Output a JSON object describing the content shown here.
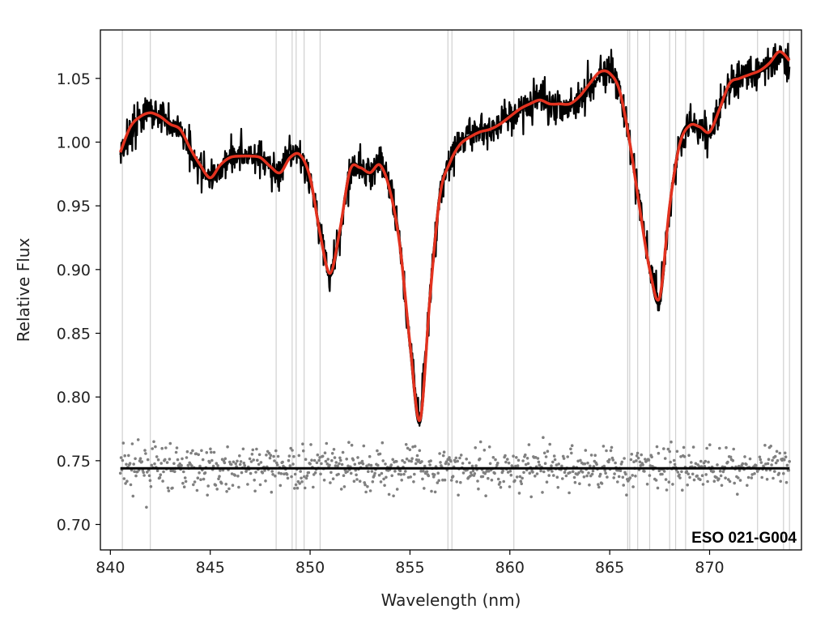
{
  "chart_data": {
    "type": "line",
    "xlabel": "Wavelength (nm)",
    "ylabel": "Relative Flux",
    "xlim": [
      839.5,
      874.6
    ],
    "ylim": [
      0.68,
      1.088
    ],
    "xticks": [
      840,
      845,
      850,
      855,
      860,
      865,
      870
    ],
    "yticks": [
      0.7,
      0.75,
      0.8,
      0.85,
      0.9,
      0.95,
      1.0,
      1.05
    ],
    "annotation": "ESO 021-G004",
    "grid": false,
    "legend": "none",
    "colors": {
      "spectrum": "#000000",
      "model": "#e3321f",
      "residuals": "#808080",
      "masked_lines": "#d0d0d0",
      "baseline": "#000000"
    },
    "residual_baseline": 0.744,
    "masked_wavelengths": [
      840.6,
      842.0,
      848.3,
      849.1,
      849.3,
      849.7,
      850.5,
      856.9,
      857.1,
      860.2,
      865.9,
      866.0,
      866.4,
      867.0,
      868.0,
      868.3,
      868.8,
      869.7,
      872.4,
      873.7,
      874.0
    ],
    "series": [
      {
        "name": "",
        "role": "observed spectrum",
        "x": [
          840.5,
          841.0,
          841.5,
          842.0,
          842.5,
          843.0,
          843.5,
          844.0,
          844.5,
          845.0,
          845.5,
          846.0,
          846.5,
          847.0,
          847.5,
          848.0,
          848.5,
          849.0,
          849.5,
          850.0,
          850.5,
          851.0,
          851.5,
          852.0,
          852.5,
          853.0,
          853.5,
          854.0,
          854.5,
          855.0,
          855.5,
          856.0,
          856.5,
          857.0,
          857.5,
          858.0,
          858.5,
          859.0,
          859.5,
          860.0,
          860.5,
          861.0,
          861.5,
          862.0,
          862.5,
          863.0,
          863.5,
          864.0,
          864.5,
          865.0,
          865.5,
          866.0,
          866.5,
          867.0,
          867.5,
          868.0,
          868.5,
          869.0,
          869.5,
          870.0,
          870.5,
          871.0,
          871.5,
          872.0,
          872.5,
          873.0,
          873.5,
          874.0
        ],
        "y": [
          0.99,
          1.01,
          1.02,
          1.025,
          1.02,
          1.015,
          1.01,
          0.995,
          0.98,
          0.97,
          0.98,
          0.99,
          0.99,
          0.99,
          0.988,
          0.98,
          0.975,
          0.99,
          0.99,
          0.97,
          0.93,
          0.895,
          0.93,
          0.98,
          0.98,
          0.975,
          0.985,
          0.965,
          0.92,
          0.84,
          0.78,
          0.88,
          0.96,
          0.985,
          1.0,
          1.005,
          1.01,
          1.01,
          1.015,
          1.02,
          1.025,
          1.03,
          1.035,
          1.03,
          1.03,
          1.028,
          1.035,
          1.045,
          1.055,
          1.055,
          1.04,
          1.0,
          0.95,
          0.9,
          0.875,
          0.95,
          1.0,
          1.015,
          1.01,
          1.005,
          1.025,
          1.045,
          1.05,
          1.055,
          1.055,
          1.06,
          1.07,
          1.065
        ]
      },
      {
        "name": "",
        "role": "model fit",
        "x": [
          840.5,
          841.0,
          841.5,
          842.0,
          842.5,
          843.0,
          843.5,
          844.0,
          844.5,
          845.0,
          845.5,
          846.0,
          846.5,
          847.0,
          847.5,
          848.0,
          848.5,
          849.0,
          849.5,
          850.0,
          850.5,
          851.0,
          851.5,
          852.0,
          852.5,
          853.0,
          853.5,
          854.0,
          854.5,
          855.0,
          855.5,
          856.0,
          856.5,
          857.0,
          857.5,
          858.0,
          858.5,
          859.0,
          859.5,
          860.0,
          860.5,
          861.0,
          861.5,
          862.0,
          862.5,
          863.0,
          863.5,
          864.0,
          864.5,
          865.0,
          865.5,
          866.0,
          866.5,
          867.0,
          867.5,
          868.0,
          868.5,
          869.0,
          869.5,
          870.0,
          870.5,
          871.0,
          871.5,
          872.0,
          872.5,
          873.0,
          873.5,
          874.0
        ],
        "y": [
          0.992,
          1.012,
          1.02,
          1.023,
          1.02,
          1.014,
          1.01,
          0.995,
          0.982,
          0.972,
          0.982,
          0.988,
          0.989,
          0.989,
          0.988,
          0.981,
          0.976,
          0.988,
          0.99,
          0.972,
          0.928,
          0.897,
          0.932,
          0.978,
          0.98,
          0.976,
          0.982,
          0.962,
          0.918,
          0.842,
          0.782,
          0.878,
          0.958,
          0.984,
          0.998,
          1.004,
          1.008,
          1.01,
          1.014,
          1.02,
          1.026,
          1.03,
          1.033,
          1.03,
          1.03,
          1.03,
          1.036,
          1.046,
          1.055,
          1.054,
          1.04,
          1.0,
          0.948,
          0.9,
          0.878,
          0.95,
          0.998,
          1.013,
          1.012,
          1.008,
          1.026,
          1.046,
          1.05,
          1.053,
          1.056,
          1.062,
          1.071,
          1.064
        ]
      }
    ]
  }
}
